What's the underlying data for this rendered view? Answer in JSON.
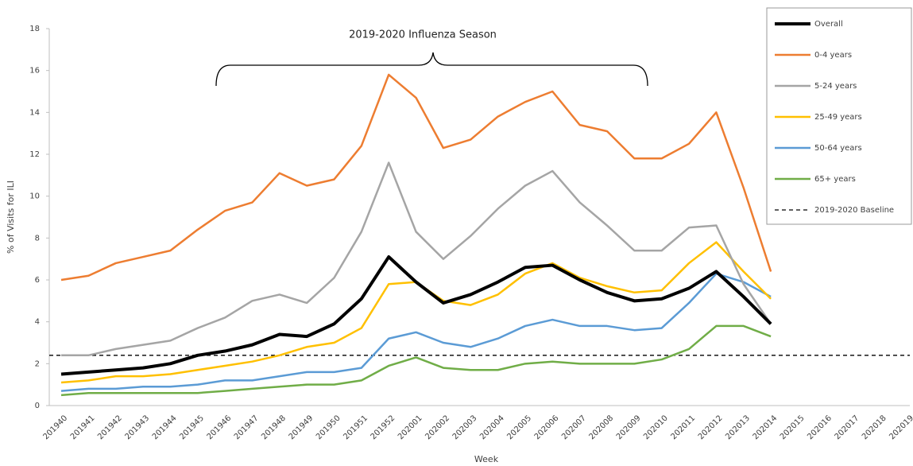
{
  "chart_data": {
    "type": "line",
    "annotation": "2019-2020 Influenza Season",
    "x_label": "Week",
    "y_label": "% of Visits for ILI",
    "categories": [
      "201940",
      "201941",
      "201942",
      "201943",
      "201944",
      "201945",
      "201946",
      "201947",
      "201948",
      "201949",
      "201950",
      "201951",
      "201952",
      "202001",
      "202002",
      "202003",
      "202004",
      "202005",
      "202006",
      "202007",
      "202008",
      "202009",
      "202010",
      "202011",
      "202012",
      "202013",
      "202014",
      "202015",
      "202016",
      "202017",
      "202018",
      "202019"
    ],
    "series": [
      {
        "name": "Overall",
        "color": "#000000",
        "width": 4,
        "values": [
          1.5,
          1.6,
          1.7,
          1.8,
          2.0,
          2.4,
          2.6,
          2.9,
          3.4,
          3.3,
          3.9,
          5.1,
          7.1,
          5.9,
          4.9,
          5.3,
          5.9,
          6.6,
          6.7,
          6.0,
          5.4,
          5.0,
          5.1,
          5.6,
          6.4,
          5.2,
          3.9,
          null,
          null,
          null,
          null,
          null
        ]
      },
      {
        "name": "0-4 years",
        "color": "#ed7d31",
        "width": 2.5,
        "values": [
          6.0,
          6.2,
          6.8,
          7.1,
          7.4,
          8.4,
          9.3,
          9.7,
          11.1,
          10.5,
          10.8,
          12.4,
          15.8,
          14.7,
          12.3,
          12.7,
          13.8,
          14.5,
          15.0,
          13.4,
          13.1,
          11.8,
          11.8,
          12.5,
          14.0,
          10.4,
          6.4,
          null,
          null,
          null,
          null,
          null
        ]
      },
      {
        "name": "5-24 years",
        "color": "#a5a5a5",
        "width": 2.5,
        "values": [
          2.4,
          2.4,
          2.7,
          2.9,
          3.1,
          3.7,
          4.2,
          5.0,
          5.3,
          4.9,
          6.1,
          8.3,
          11.6,
          8.3,
          7.0,
          8.1,
          9.4,
          10.5,
          11.2,
          9.7,
          8.6,
          7.4,
          7.4,
          8.5,
          8.6,
          5.8,
          3.9,
          null,
          null,
          null,
          null,
          null
        ]
      },
      {
        "name": "25-49 years",
        "color": "#ffc000",
        "width": 2.5,
        "values": [
          1.1,
          1.2,
          1.4,
          1.4,
          1.5,
          1.7,
          1.9,
          2.1,
          2.4,
          2.8,
          3.0,
          3.7,
          5.8,
          5.9,
          5.0,
          4.8,
          5.3,
          6.3,
          6.8,
          6.1,
          5.7,
          5.4,
          5.5,
          6.8,
          7.8,
          6.4,
          5.1,
          null,
          null,
          null,
          null,
          null
        ]
      },
      {
        "name": "50-64 years",
        "color": "#5b9bd5",
        "width": 2.5,
        "values": [
          0.7,
          0.8,
          0.8,
          0.9,
          0.9,
          1.0,
          1.2,
          1.2,
          1.4,
          1.6,
          1.6,
          1.8,
          3.2,
          3.5,
          3.0,
          2.8,
          3.2,
          3.8,
          4.1,
          3.8,
          3.8,
          3.6,
          3.7,
          4.9,
          6.3,
          5.9,
          5.2,
          null,
          null,
          null,
          null,
          null
        ]
      },
      {
        "name": "65+ years",
        "color": "#70ad47",
        "width": 2.5,
        "values": [
          0.5,
          0.6,
          0.6,
          0.6,
          0.6,
          0.6,
          0.7,
          0.8,
          0.9,
          1.0,
          1.0,
          1.2,
          1.9,
          2.3,
          1.8,
          1.7,
          1.7,
          2.0,
          2.1,
          2.0,
          2.0,
          2.0,
          2.2,
          2.7,
          3.8,
          3.8,
          3.3,
          null,
          null,
          null,
          null,
          null
        ]
      }
    ],
    "baseline": {
      "name": "2019-2020 Baseline",
      "value": 2.4,
      "color": "#000000"
    },
    "ylim": [
      0,
      18
    ],
    "yticks": [
      0,
      2,
      4,
      6,
      8,
      10,
      12,
      14,
      16,
      18
    ],
    "grid": false
  }
}
